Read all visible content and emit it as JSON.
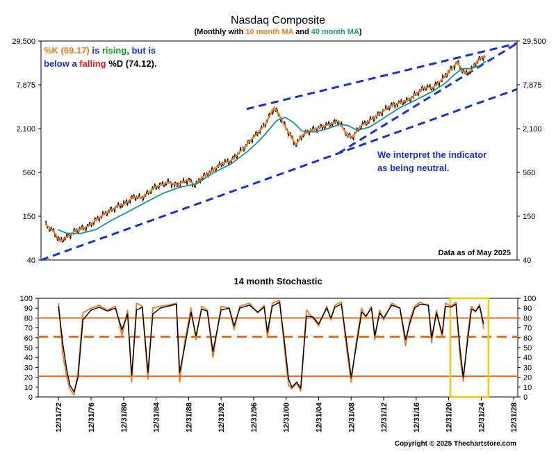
{
  "chart_data": [
    {
      "type": "line",
      "title": "Nasdaq Composite",
      "subtitle_parts": [
        "(Monthly with ",
        "10 month MA",
        " and ",
        "40 month MA",
        ")"
      ],
      "scale": "log",
      "y_ticks": [
        "29,500",
        "7,875",
        "2,100",
        "560",
        "150",
        "40"
      ],
      "y_tick_values": [
        29500,
        7875,
        2100,
        560,
        150,
        40
      ],
      "ylim": [
        40,
        29500
      ],
      "xlim": [
        1972.5,
        2029.0
      ],
      "grid": false,
      "annotation_parts": [
        "%K (69.17)",
        " is ",
        "rising",
        ", but is",
        "below a ",
        "falling",
        " %D (74.12)."
      ],
      "interpretation_lines": [
        "We interpret the indicator",
        "as being neutral."
      ],
      "data_note": "Data as of May 2025",
      "colors": {
        "price": "#000000",
        "ma10": "#f07a1e",
        "ma40": "#1a9090",
        "trend": "#1a2fd0",
        "rising": "#1a9a1a",
        "falling": "#e01a1a",
        "annot_blue": "#1a2fd0"
      },
      "series": [
        {
          "name": "10 month MA",
          "x": [
            1973.0,
            1974.0,
            1974.75,
            1975.5,
            1976.5,
            1978.0,
            1980.0,
            1981.5,
            1982.5,
            1983.5,
            1984.5,
            1986.0,
            1987.7,
            1988.5,
            1990.0,
            1990.8,
            1991.5,
            1994.0,
            1995.0,
            1996.5,
            1998.0,
            1999.0,
            2000.2,
            2000.8,
            2001.5,
            2002.75,
            2003.5,
            2004.5,
            2006.0,
            2007.8,
            2008.9,
            2009.5,
            2010.5,
            2012.0,
            2014.0,
            2016.0,
            2018.0,
            2019.0,
            2020.2,
            2021.9,
            2022.8,
            2023.5,
            2024.0,
            2024.9,
            2025.3
          ],
          "values": [
            118,
            95,
            70,
            80,
            95,
            110,
            160,
            200,
            220,
            270,
            260,
            360,
            420,
            380,
            450,
            380,
            470,
            740,
            790,
            1150,
            1750,
            2300,
            4000,
            3100,
            2200,
            1300,
            1700,
            2000,
            2250,
            2650,
            1700,
            1650,
            2300,
            2900,
            4200,
            4900,
            7300,
            7200,
            9500,
            15600,
            11000,
            12000,
            14800,
            18500,
            18200
          ]
        },
        {
          "name": "40 month MA",
          "x": [
            1974.5,
            1975.5,
            1977.0,
            1979.0,
            1981.0,
            1983.0,
            1985.0,
            1987.0,
            1989.0,
            1991.0,
            1993.0,
            1995.0,
            1997.0,
            1998.5,
            1999.5,
            2000.5,
            2001.5,
            2002.5,
            2003.5,
            2005.0,
            2006.5,
            2008.0,
            2009.0,
            2010.0,
            2011.5,
            2013.0,
            2015.0,
            2017.0,
            2019.0,
            2020.5,
            2021.5,
            2022.5,
            2023.5,
            2024.5,
            2025.3
          ],
          "values": [
            100,
            90,
            88,
            100,
            135,
            175,
            230,
            300,
            360,
            400,
            560,
            720,
            1050,
            1500,
            2000,
            2700,
            2950,
            2500,
            1950,
            1900,
            2100,
            2400,
            2300,
            2000,
            2200,
            2800,
            3900,
            5000,
            6500,
            8300,
            10600,
            12800,
            12800,
            14000,
            16000
          ]
        }
      ],
      "trendlines": [
        {
          "x": [
            1972.5,
            2029.0
          ],
          "values": [
            40,
            6900
          ]
        },
        {
          "x": [
            1996.9,
            2029.0
          ],
          "values": [
            3800,
            27500
          ]
        },
        {
          "x": [
            2007.8,
            2029.0
          ],
          "values": [
            1000,
            27500
          ]
        }
      ]
    },
    {
      "type": "line",
      "title": "14 month Stochastic",
      "y_ticks": [
        "100",
        "90",
        "80",
        "70",
        "60",
        "50",
        "40",
        "30",
        "20",
        "10",
        "0"
      ],
      "ylim": [
        0,
        100
      ],
      "xlim": [
        1970.5,
        2029.5
      ],
      "x_ticks": [
        "12/31/72",
        "12/31/76",
        "12/31/80",
        "12/31/84",
        "12/31/88",
        "12/31/92",
        "12/31/96",
        "12/31/00",
        "12/31/04",
        "12/31/08",
        "12/31/12",
        "12/31/16",
        "12/31/20",
        "12/31/24",
        "12/31/28"
      ],
      "reference_lines": [
        80,
        61,
        21
      ],
      "highlight": {
        "x": [
          2021.2,
          2025.9
        ],
        "color": "#f5c518"
      },
      "colors": {
        "k": "#f07a1e",
        "d": "#000000",
        "ref": "#e07020"
      },
      "series": [
        {
          "name": "%K",
          "x": [
            1973.0,
            1973.5,
            1974.0,
            1974.4,
            1974.9,
            1975.4,
            1976.0,
            1977.0,
            1978.0,
            1979.0,
            1980.0,
            1980.8,
            1981.5,
            1982.0,
            1982.6,
            1983.3,
            1984.0,
            1984.6,
            1985.5,
            1986.5,
            1987.5,
            1987.9,
            1988.5,
            1989.3,
            1989.9,
            1990.6,
            1991.3,
            1992.0,
            1993.0,
            1994.0,
            1994.6,
            1995.3,
            1996.5,
            1997.5,
            1998.3,
            1998.7,
            1999.3,
            2000.2,
            2000.8,
            2001.3,
            2001.7,
            2002.3,
            2002.8,
            2003.5,
            2004.3,
            2005.0,
            2006.0,
            2006.5,
            2007.0,
            2007.8,
            2008.5,
            2009.0,
            2009.6,
            2010.3,
            2010.8,
            2011.5,
            2011.9,
            2012.5,
            2013.0,
            2014.0,
            2015.0,
            2015.7,
            2016.2,
            2016.8,
            2017.5,
            2018.5,
            2018.9,
            2019.5,
            2020.2,
            2020.6,
            2021.3,
            2021.9,
            2022.4,
            2022.8,
            2023.3,
            2023.8,
            2024.3,
            2024.8,
            2025.3
          ],
          "values": [
            95,
            45,
            20,
            8,
            2,
            25,
            85,
            90,
            93,
            88,
            92,
            62,
            88,
            15,
            95,
            92,
            18,
            90,
            92,
            93,
            95,
            15,
            55,
            90,
            58,
            92,
            88,
            40,
            92,
            90,
            68,
            92,
            95,
            85,
            93,
            60,
            95,
            98,
            48,
            12,
            8,
            14,
            6,
            88,
            80,
            72,
            92,
            78,
            93,
            96,
            45,
            15,
            55,
            90,
            80,
            92,
            58,
            88,
            78,
            95,
            90,
            52,
            78,
            92,
            96,
            92,
            55,
            88,
            60,
            95,
            92,
            96,
            40,
            16,
            60,
            92,
            86,
            94,
            69
          ]
        },
        {
          "name": "%D",
          "x": [
            1973.0,
            1973.5,
            1974.0,
            1974.4,
            1974.9,
            1975.4,
            1976.0,
            1977.0,
            1978.0,
            1979.0,
            1980.0,
            1980.8,
            1981.5,
            1982.0,
            1982.6,
            1983.3,
            1984.0,
            1984.6,
            1985.5,
            1986.5,
            1987.5,
            1987.9,
            1988.5,
            1989.3,
            1989.9,
            1990.6,
            1991.3,
            1992.0,
            1993.0,
            1994.0,
            1994.6,
            1995.3,
            1996.5,
            1997.5,
            1998.3,
            1998.7,
            1999.3,
            2000.2,
            2000.8,
            2001.3,
            2001.7,
            2002.3,
            2002.8,
            2003.5,
            2004.3,
            2005.0,
            2006.0,
            2006.5,
            2007.0,
            2007.8,
            2008.5,
            2009.0,
            2009.6,
            2010.3,
            2010.8,
            2011.5,
            2011.9,
            2012.5,
            2013.0,
            2014.0,
            2015.0,
            2015.7,
            2016.2,
            2016.8,
            2017.5,
            2018.5,
            2018.9,
            2019.5,
            2020.2,
            2020.6,
            2021.3,
            2021.9,
            2022.4,
            2022.8,
            2023.3,
            2023.8,
            2024.3,
            2024.8,
            2025.3
          ],
          "values": [
            92,
            55,
            28,
            12,
            5,
            20,
            78,
            88,
            91,
            87,
            90,
            68,
            84,
            22,
            88,
            91,
            25,
            84,
            90,
            92,
            94,
            25,
            50,
            86,
            62,
            89,
            87,
            46,
            88,
            90,
            72,
            90,
            93,
            86,
            91,
            66,
            92,
            96,
            55,
            18,
            10,
            15,
            9,
            82,
            81,
            74,
            90,
            80,
            91,
            94,
            52,
            20,
            50,
            86,
            82,
            90,
            62,
            85,
            80,
            93,
            90,
            58,
            74,
            90,
            94,
            93,
            60,
            85,
            64,
            92,
            91,
            94,
            48,
            20,
            55,
            89,
            87,
            92,
            74
          ]
        }
      ]
    }
  ],
  "copyright": "Copyright © 2025 Thechartstore.com"
}
